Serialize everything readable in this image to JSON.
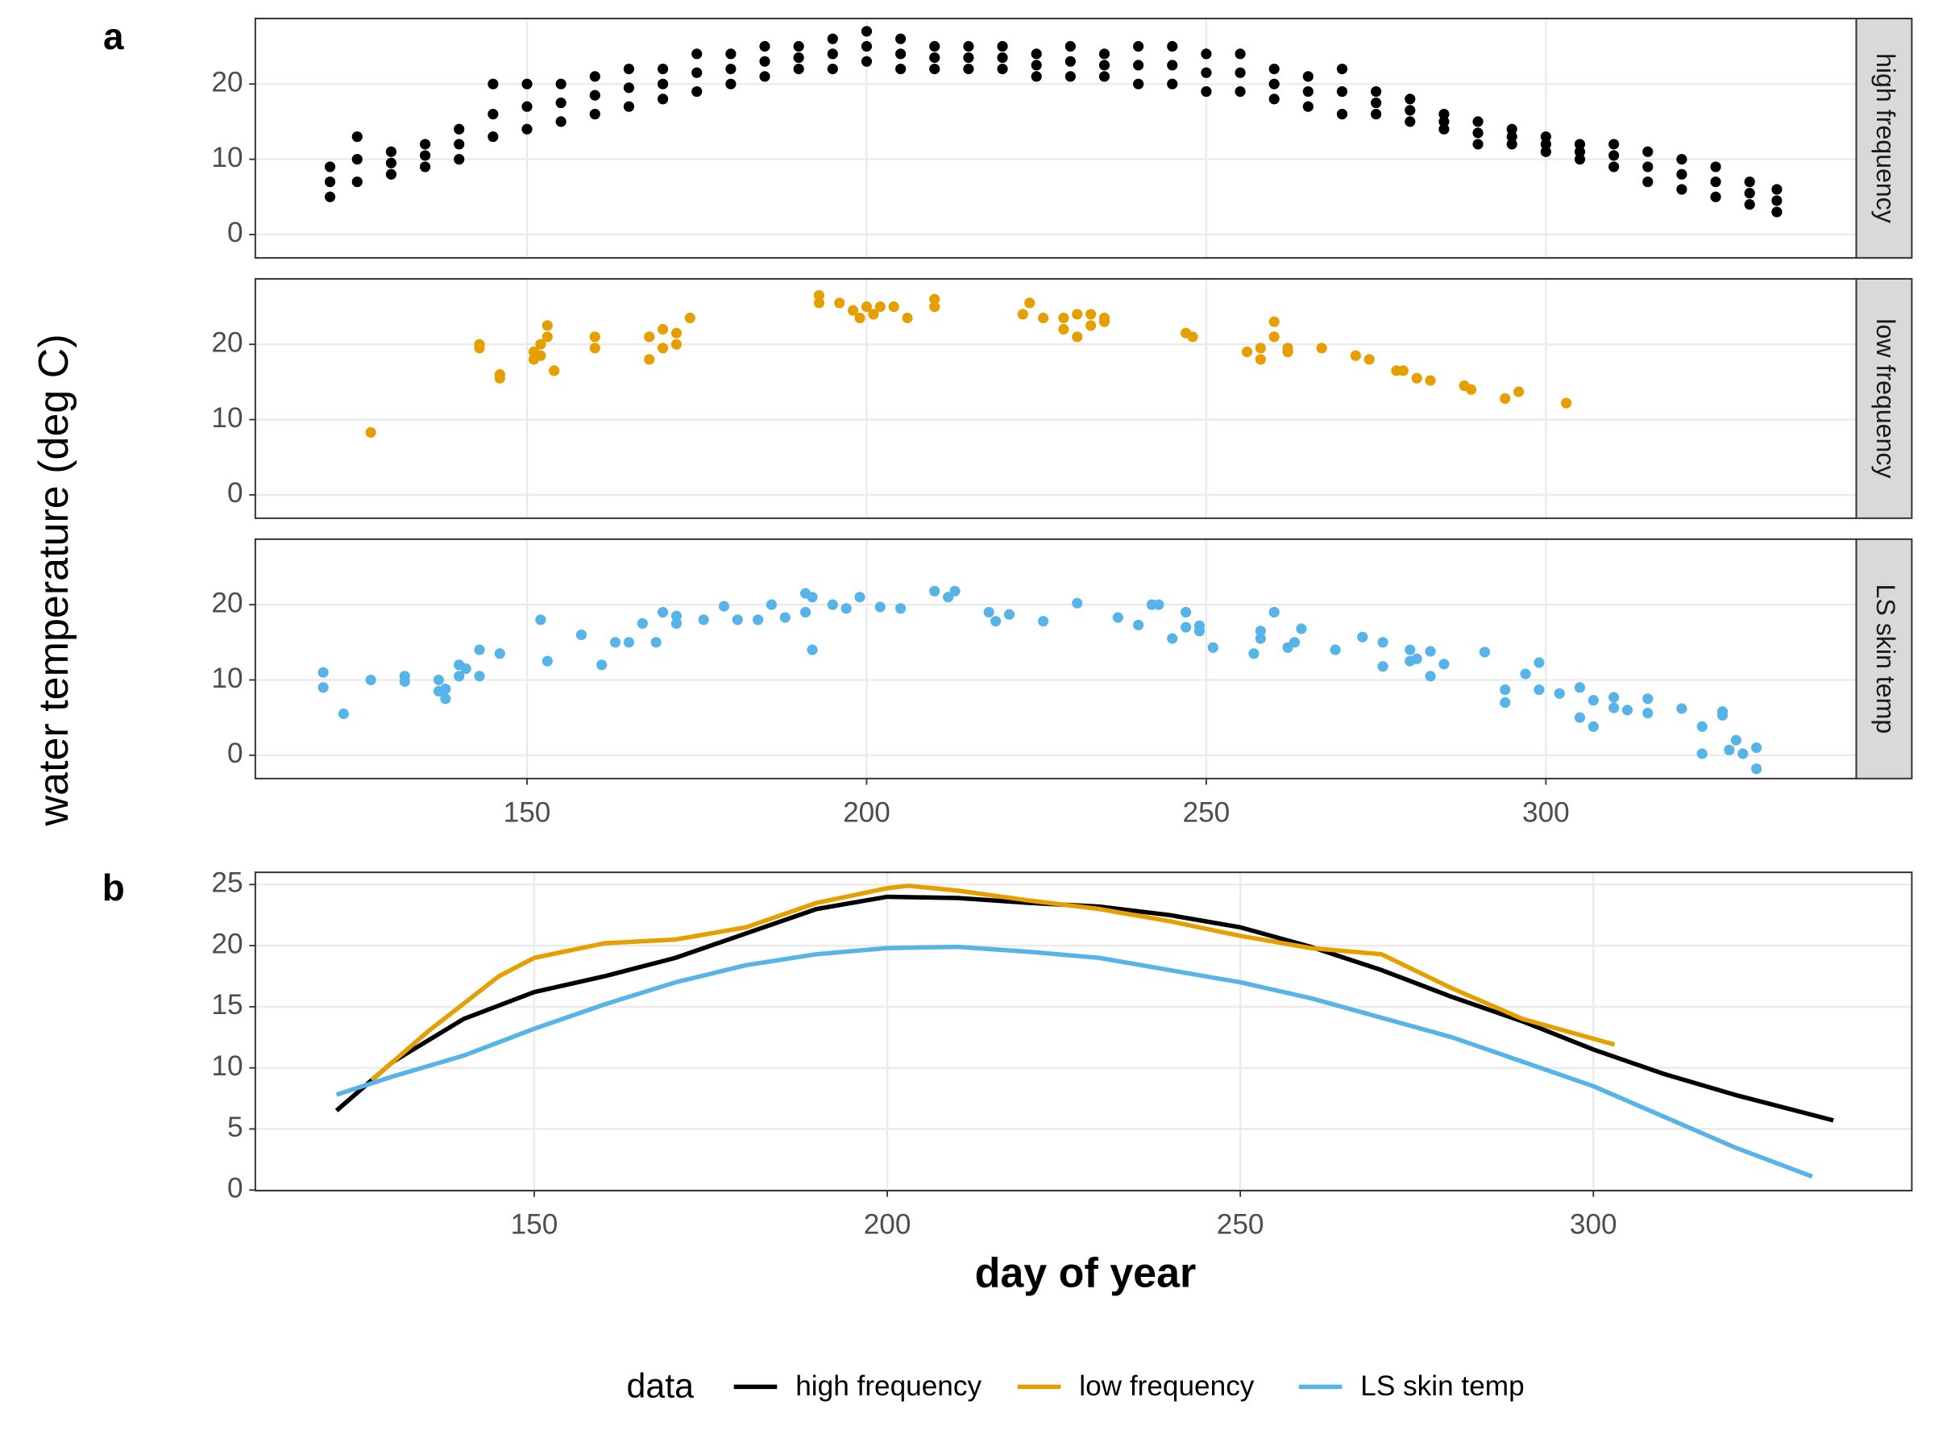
{
  "chart_data": [
    {
      "type": "scatter",
      "tag": "a",
      "y_label": "water temperature (deg C)",
      "xlim": [
        110,
        345.7
      ],
      "xticks": [
        150,
        200,
        250,
        300
      ],
      "ylim": [
        -3.1,
        28.7
      ],
      "yticks": [
        0,
        10,
        20
      ],
      "grid": true,
      "series": [
        {
          "name": "high frequency",
          "color": "#000000",
          "x": [
            121,
            121,
            121,
            125,
            125,
            125,
            130,
            130,
            130,
            135,
            135,
            135,
            140,
            140,
            140,
            145,
            145,
            145,
            150,
            150,
            150,
            155,
            155,
            155,
            160,
            160,
            160,
            165,
            165,
            165,
            170,
            170,
            170,
            175,
            175,
            175,
            180,
            180,
            180,
            185,
            185,
            185,
            190,
            190,
            190,
            195,
            195,
            195,
            200,
            200,
            200,
            205,
            205,
            205,
            210,
            210,
            210,
            215,
            215,
            215,
            220,
            220,
            220,
            225,
            225,
            225,
            230,
            230,
            230,
            235,
            235,
            235,
            240,
            240,
            240,
            245,
            245,
            245,
            250,
            250,
            250,
            255,
            255,
            255,
            260,
            260,
            260,
            265,
            265,
            265,
            270,
            270,
            270,
            275,
            275,
            275,
            280,
            280,
            280,
            285,
            285,
            285,
            290,
            290,
            290,
            295,
            295,
            295,
            300,
            300,
            300,
            305,
            305,
            305,
            310,
            310,
            310,
            315,
            315,
            315,
            320,
            320,
            320,
            325,
            325,
            325,
            330,
            330,
            330,
            334,
            334,
            334
          ],
          "values": [
            9,
            7,
            5,
            13,
            10,
            7,
            11,
            9.5,
            8,
            12,
            10.5,
            9,
            14,
            12,
            10,
            20,
            16,
            13,
            20,
            17,
            14,
            20,
            17.5,
            15,
            21,
            18.5,
            16,
            22,
            19.5,
            17,
            22,
            20,
            18,
            24,
            21.5,
            19,
            24,
            22,
            20,
            25,
            23,
            21,
            25,
            23.5,
            22,
            26,
            24,
            22,
            27,
            25,
            23,
            26,
            24,
            22,
            25,
            23.5,
            22,
            25,
            23.5,
            22,
            25,
            23.5,
            22,
            24,
            22.5,
            21,
            25,
            23,
            21,
            24,
            22.5,
            21,
            25,
            22.5,
            20,
            25,
            22.5,
            20,
            24,
            21.5,
            19,
            24,
            21.5,
            19,
            22,
            20,
            18,
            21,
            19,
            17,
            22,
            19,
            16,
            19,
            17.5,
            16,
            18,
            16.5,
            15,
            16,
            15,
            14,
            15,
            13.5,
            12,
            14,
            13,
            12,
            13,
            12,
            11,
            12,
            11,
            10,
            12,
            10.5,
            9,
            11,
            9,
            7,
            10,
            8,
            6,
            9,
            7,
            5,
            7,
            5.5,
            4,
            6,
            4.5,
            3
          ]
        },
        {
          "name": "low frequency",
          "color": "#E69F00",
          "x": [
            127,
            143,
            143,
            146,
            146,
            151,
            151,
            152,
            152,
            153,
            153,
            154,
            160,
            160,
            168,
            168,
            170,
            170,
            172,
            172,
            174,
            193,
            193,
            196,
            198,
            199,
            200,
            201,
            202,
            204,
            206,
            210,
            210,
            223,
            224,
            226,
            229,
            229,
            231,
            231,
            233,
            233,
            235,
            235,
            247,
            248,
            256,
            258,
            258,
            260,
            260,
            262,
            262,
            267,
            272,
            274,
            278,
            279,
            281,
            283,
            288,
            289,
            294,
            296,
            303
          ],
          "values": [
            8.3,
            20,
            19.5,
            16,
            15.5,
            18,
            19,
            20,
            18.5,
            22.5,
            21,
            16.5,
            21,
            19.5,
            21,
            18,
            22,
            19.5,
            21.5,
            20,
            23.5,
            26.5,
            25.5,
            25.5,
            24.5,
            23.5,
            25,
            24,
            25,
            25,
            23.5,
            26,
            25,
            24,
            25.5,
            23.5,
            23.5,
            22,
            24,
            21,
            24,
            22.5,
            23.5,
            23,
            21.5,
            21,
            19,
            19.5,
            18,
            23,
            21,
            19.5,
            19,
            19.5,
            18.5,
            18,
            16.5,
            16.5,
            15.5,
            15.2,
            14.5,
            14,
            12.8,
            13.7,
            12.2
          ]
        },
        {
          "name": "LS skin temp",
          "color": "#56B4E9",
          "x": [
            120,
            120,
            123,
            127,
            132,
            132,
            137,
            137,
            138,
            138,
            140,
            140,
            141,
            143,
            143,
            146,
            152,
            153,
            158,
            161,
            163,
            165,
            167,
            169,
            170,
            172,
            172,
            176,
            179,
            181,
            184,
            186,
            188,
            191,
            191,
            192,
            192,
            195,
            197,
            199,
            202,
            205,
            210,
            212,
            213,
            218,
            219,
            221,
            226,
            231,
            237,
            240,
            242,
            243,
            245,
            247,
            247,
            249,
            249,
            251,
            257,
            258,
            258,
            260,
            262,
            263,
            264,
            269,
            273,
            276,
            276,
            280,
            280,
            281,
            283,
            283,
            285,
            291,
            294,
            294,
            297,
            299,
            299,
            302,
            305,
            305,
            307,
            307,
            310,
            310,
            312,
            315,
            315,
            320,
            323,
            323,
            326,
            326,
            327,
            328,
            329,
            331,
            331
          ],
          "values": [
            11,
            9,
            5.5,
            10,
            10.5,
            9.8,
            10,
            8.5,
            7.5,
            8.8,
            12,
            10.5,
            11.5,
            14,
            10.5,
            13.5,
            18,
            12.5,
            16,
            12,
            15,
            15,
            17.5,
            15,
            19,
            18.5,
            17.5,
            18,
            19.8,
            18,
            18,
            20,
            18.3,
            21.5,
            19,
            21,
            14,
            20,
            19.5,
            21,
            19.7,
            19.5,
            21.8,
            21,
            21.8,
            19,
            17.8,
            18.7,
            17.8,
            20.2,
            18.3,
            17.3,
            20,
            20,
            15.5,
            19,
            17,
            17.2,
            16.5,
            14.3,
            13.5,
            16.5,
            15.5,
            19,
            14.3,
            15,
            16.8,
            14,
            15.7,
            15,
            11.8,
            14,
            12.5,
            12.8,
            13.8,
            10.5,
            12.1,
            13.7,
            8.7,
            7,
            10.8,
            12.3,
            8.7,
            8.2,
            9,
            5,
            7.3,
            3.8,
            7.7,
            6.3,
            6,
            7.5,
            5.6,
            6.2,
            3.8,
            0.2,
            5.8,
            5.3,
            0.7,
            2,
            0.2,
            1,
            -1.8
          ]
        }
      ]
    },
    {
      "type": "line",
      "tag": "b",
      "x_label": "day of year",
      "legend_title": "data",
      "xlim": [
        110.5,
        345.1
      ],
      "xticks": [
        150,
        200,
        250,
        300
      ],
      "ylim": [
        -0.05,
        26
      ],
      "yticks": [
        0,
        5,
        10,
        15,
        20,
        25
      ],
      "grid": true,
      "legend": "bottom",
      "series": [
        {
          "name": "high frequency",
          "color": "#000000",
          "x": [
            122,
            130,
            140,
            150,
            160,
            170,
            180,
            190,
            200,
            210,
            220,
            230,
            240,
            250,
            260,
            270,
            280,
            290,
            300,
            310,
            320,
            334
          ],
          "values": [
            6.5,
            10.5,
            14,
            16.2,
            17.5,
            19,
            21,
            23,
            24,
            23.9,
            23.5,
            23.2,
            22.5,
            21.5,
            19.9,
            18,
            15.8,
            13.8,
            11.5,
            9.5,
            7.8,
            5.7
          ]
        },
        {
          "name": "low frequency",
          "color": "#E69F00",
          "x": [
            127,
            135,
            145,
            150,
            160,
            170,
            180,
            190,
            200,
            203,
            210,
            220,
            230,
            240,
            250,
            260,
            270,
            280,
            290,
            303
          ],
          "values": [
            9,
            13,
            17.5,
            19,
            20.2,
            20.5,
            21.5,
            23.5,
            24.7,
            24.9,
            24.5,
            23.7,
            23,
            22,
            20.8,
            19.8,
            19.3,
            16.5,
            14,
            11.9
          ]
        },
        {
          "name": "LS skin temp",
          "color": "#56B4E9",
          "x": [
            122,
            130,
            140,
            150,
            160,
            170,
            180,
            190,
            200,
            210,
            220,
            230,
            240,
            250,
            260,
            270,
            280,
            290,
            300,
            310,
            320,
            331
          ],
          "values": [
            7.8,
            9.3,
            11,
            13.2,
            15.2,
            17,
            18.4,
            19.3,
            19.8,
            19.9,
            19.5,
            19,
            18,
            17,
            15.7,
            14.1,
            12.5,
            10.5,
            8.5,
            6,
            3.5,
            1.1
          ]
        }
      ]
    }
  ]
}
